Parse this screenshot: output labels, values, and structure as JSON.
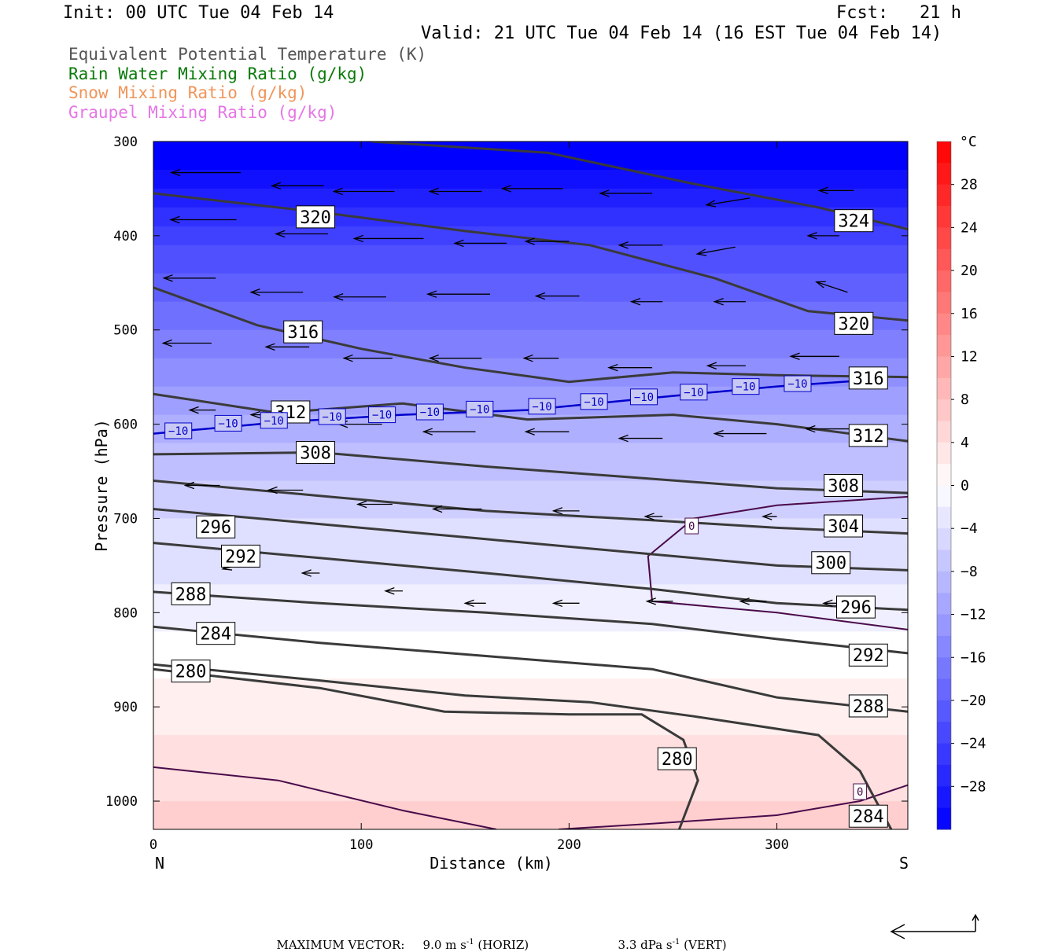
{
  "header": {
    "init": "Init: 00 UTC Tue 04 Feb 14",
    "fcst": "Fcst:   21 h",
    "valid": "Valid: 21 UTC Tue 04 Feb 14 (16 EST Tue 04 Feb 14)",
    "fields": [
      {
        "text": "Equivalent Potential Temperature (K)",
        "color": "#555555"
      },
      {
        "text": "Rain Water Mixing Ratio (g/kg)",
        "color": "#0a7a0a"
      },
      {
        "text": "Snow Mixing Ratio (g/kg)",
        "color": "#f0955a"
      },
      {
        "text": "Graupel Mixing Ratio (g/kg)",
        "color": "#e676e6"
      }
    ]
  },
  "footer": {
    "label": "MAXIMUM VECTOR:",
    "horiz_value": "9.0 m s",
    "horiz_exp": "-1",
    "horiz_unit": "(HORIZ)",
    "vert_value": "3.3 dPa s",
    "vert_exp": "-1",
    "vert_unit": "(VERT)"
  },
  "chart_data": {
    "type": "cross-section contour",
    "xlabel": "Distance (km)",
    "ylabel": "Pressure (hPa)",
    "xlim": [
      0,
      363
    ],
    "ylim": [
      1030,
      300
    ],
    "x_ticks": [
      0,
      100,
      200,
      300
    ],
    "y_ticks": [
      300,
      400,
      500,
      600,
      700,
      800,
      900,
      1000
    ],
    "endpoint_left": "N",
    "endpoint_right": "S",
    "colorbar": {
      "unit": "°C",
      "tick_values": [
        28,
        24,
        20,
        16,
        12,
        8,
        4,
        0,
        -4,
        -8,
        -12,
        -16,
        -20,
        -24,
        -28
      ],
      "tick_labels": [
        "28",
        "24",
        "20",
        "16",
        "12",
        "8",
        "4",
        "0",
        "−4",
        "−8",
        "−12",
        "−16",
        "−20",
        "−24",
        "−28"
      ],
      "min": -32,
      "max": 32,
      "step": 2,
      "negative_color": "#0000ff",
      "positive_color": "#ff0000"
    },
    "temperature_shading": [
      {
        "x": [
          0,
          363
        ],
        "p": 300,
        "t": -34
      },
      {
        "x": [
          0,
          363
        ],
        "p": 400,
        "t": -24
      },
      {
        "x": [
          0,
          363
        ],
        "p": 500,
        "t": -17
      },
      {
        "x": [
          0,
          363
        ],
        "p": 600,
        "t": -10
      },
      {
        "x": [
          0,
          363
        ],
        "p": 700,
        "t": -5
      },
      {
        "x": [
          0,
          363
        ],
        "p": 800,
        "t": -2
      },
      {
        "x": [
          0,
          363
        ],
        "p": 900,
        "t": 2
      },
      {
        "x": [
          0,
          363
        ],
        "p": 1000,
        "t": 5
      }
    ],
    "theta_e_contours": [
      {
        "level": 324,
        "label": "324",
        "points": [
          [
            105,
            300
          ],
          [
            190,
            312
          ],
          [
            260,
            345
          ],
          [
            320,
            370
          ],
          [
            363,
            393
          ]
        ]
      },
      {
        "level": 320,
        "label": "320",
        "points": [
          [
            0,
            355
          ],
          [
            80,
            375
          ],
          [
            150,
            395
          ],
          [
            210,
            410
          ],
          [
            270,
            445
          ],
          [
            315,
            480
          ],
          [
            363,
            490
          ]
        ]
      },
      {
        "level": 316,
        "label": "316",
        "points": [
          [
            0,
            455
          ],
          [
            50,
            495
          ],
          [
            100,
            520
          ],
          [
            150,
            540
          ],
          [
            200,
            555
          ],
          [
            250,
            545
          ],
          [
            300,
            548
          ],
          [
            363,
            550
          ]
        ]
      },
      {
        "level": 312,
        "label": "312",
        "points": [
          [
            0,
            568
          ],
          [
            60,
            588
          ],
          [
            120,
            578
          ],
          [
            180,
            595
          ],
          [
            250,
            590
          ],
          [
            300,
            600
          ],
          [
            363,
            618
          ]
        ]
      },
      {
        "level": 308,
        "label": "308",
        "points": [
          [
            0,
            632
          ],
          [
            80,
            630
          ],
          [
            160,
            645
          ],
          [
            240,
            658
          ],
          [
            300,
            668
          ],
          [
            363,
            673
          ]
        ]
      },
      {
        "level": 304,
        "label": "304",
        "points": [
          [
            0,
            660
          ],
          [
            80,
            676
          ],
          [
            160,
            692
          ],
          [
            240,
            702
          ],
          [
            300,
            710
          ],
          [
            363,
            716
          ]
        ]
      },
      {
        "level": 300,
        "label": "300",
        "points": [
          [
            0,
            690
          ],
          [
            80,
            706
          ],
          [
            160,
            722
          ],
          [
            240,
            738
          ],
          [
            300,
            750
          ],
          [
            363,
            755
          ]
        ]
      },
      {
        "level": 296,
        "label": "296",
        "points": [
          [
            0,
            726
          ],
          [
            80,
            742
          ],
          [
            160,
            758
          ],
          [
            240,
            775
          ],
          [
            300,
            790
          ],
          [
            363,
            797
          ]
        ]
      },
      {
        "level": 292,
        "label": "292",
        "points": [
          [
            0,
            778
          ],
          [
            80,
            790
          ],
          [
            160,
            800
          ],
          [
            240,
            812
          ],
          [
            300,
            828
          ],
          [
            363,
            843
          ]
        ]
      },
      {
        "level": 288,
        "label": "288",
        "points": [
          [
            0,
            815
          ],
          [
            80,
            832
          ],
          [
            160,
            846
          ],
          [
            240,
            860
          ],
          [
            300,
            890
          ],
          [
            363,
            905
          ]
        ]
      },
      {
        "level": 284,
        "label": "284",
        "points": [
          [
            0,
            855
          ],
          [
            80,
            872
          ],
          [
            150,
            888
          ],
          [
            210,
            895
          ],
          [
            260,
            910
          ],
          [
            320,
            930
          ],
          [
            340,
            968
          ],
          [
            355,
            1030
          ]
        ]
      },
      {
        "level": 280,
        "label": "280",
        "points": [
          [
            0,
            860
          ],
          [
            80,
            880
          ],
          [
            140,
            905
          ],
          [
            200,
            908
          ],
          [
            235,
            908
          ],
          [
            255,
            935
          ],
          [
            262,
            978
          ],
          [
            253,
            1030
          ]
        ]
      }
    ],
    "theta_e_labels": [
      {
        "label": "320",
        "x": 78,
        "p": 380
      },
      {
        "label": "324",
        "x": 337,
        "p": 384
      },
      {
        "label": "316",
        "x": 72,
        "p": 502
      },
      {
        "label": "320",
        "x": 337,
        "p": 493
      },
      {
        "label": "316",
        "x": 344,
        "p": 551
      },
      {
        "label": "312",
        "x": 66,
        "p": 587
      },
      {
        "label": "312",
        "x": 344,
        "p": 612
      },
      {
        "label": "308",
        "x": 78,
        "p": 630
      },
      {
        "label": "308",
        "x": 332,
        "p": 665
      },
      {
        "label": "296",
        "x": 30,
        "p": 709
      },
      {
        "label": "304",
        "x": 332,
        "p": 708
      },
      {
        "label": "292",
        "x": 42,
        "p": 740
      },
      {
        "label": "300",
        "x": 326,
        "p": 747
      },
      {
        "label": "288",
        "x": 18,
        "p": 780
      },
      {
        "label": "296",
        "x": 338,
        "p": 794
      },
      {
        "label": "284",
        "x": 30,
        "p": 822
      },
      {
        "label": "292",
        "x": 344,
        "p": 845
      },
      {
        "label": "280",
        "x": 18,
        "p": 862
      },
      {
        "label": "288",
        "x": 344,
        "p": 899
      },
      {
        "label": "280",
        "x": 252,
        "p": 955
      },
      {
        "label": "284",
        "x": 344,
        "p": 1016
      }
    ],
    "isotherm_minus10": {
      "level": -10,
      "color": "#0000cc",
      "points": [
        [
          0,
          610
        ],
        [
          60,
          598
        ],
        [
          120,
          590
        ],
        [
          180,
          585
        ],
        [
          250,
          570
        ],
        [
          300,
          560
        ],
        [
          345,
          553
        ]
      ],
      "labels": [
        {
          "label": "−10",
          "x": 12,
          "p": 607
        },
        {
          "label": "−10",
          "x": 36,
          "p": 599
        },
        {
          "label": "−10",
          "x": 58,
          "p": 596
        },
        {
          "label": "−10",
          "x": 86,
          "p": 592
        },
        {
          "label": "−10",
          "x": 110,
          "p": 590
        },
        {
          "label": "−10",
          "x": 133,
          "p": 587
        },
        {
          "label": "−10",
          "x": 157,
          "p": 584
        },
        {
          "label": "−10",
          "x": 187,
          "p": 581
        },
        {
          "label": "−10",
          "x": 212,
          "p": 576
        },
        {
          "label": "−10",
          "x": 236,
          "p": 571
        },
        {
          "label": "−10",
          "x": 260,
          "p": 566
        },
        {
          "label": "−10",
          "x": 285,
          "p": 560
        },
        {
          "label": "−10",
          "x": 310,
          "p": 557
        }
      ]
    },
    "isotherm_zero": {
      "level": 0,
      "color": "#4a0a4a",
      "segments": [
        [
          [
            363,
            677
          ],
          [
            300,
            686
          ],
          [
            260,
            700
          ],
          [
            238,
            740
          ],
          [
            240,
            788
          ],
          [
            300,
            800
          ],
          [
            363,
            818
          ]
        ],
        [
          [
            0,
            964
          ],
          [
            60,
            978
          ],
          [
            120,
            1010
          ],
          [
            165,
            1030
          ]
        ],
        [
          [
            195,
            1030
          ],
          [
            240,
            1024
          ],
          [
            300,
            1015
          ],
          [
            340,
            1000
          ],
          [
            363,
            983
          ]
        ]
      ],
      "labels": [
        {
          "label": "0",
          "x": 259,
          "p": 708
        },
        {
          "label": "0",
          "x": 340,
          "p": 990
        }
      ]
    },
    "wind_vectors": [
      {
        "x": 42,
        "p": 333,
        "u": -40,
        "w": 0
      },
      {
        "x": 82,
        "p": 347,
        "u": -30,
        "w": 0
      },
      {
        "x": 116,
        "p": 353,
        "u": -35,
        "w": 0
      },
      {
        "x": 158,
        "p": 353,
        "u": -30,
        "w": 0
      },
      {
        "x": 197,
        "p": 350,
        "u": -35,
        "w": 0
      },
      {
        "x": 240,
        "p": 355,
        "u": -30,
        "w": 0
      },
      {
        "x": 287,
        "p": 360,
        "u": -25,
        "w": 4
      },
      {
        "x": 337,
        "p": 352,
        "u": -20,
        "w": 0
      },
      {
        "x": 40,
        "p": 383,
        "u": -38,
        "w": 0
      },
      {
        "x": 84,
        "p": 398,
        "u": -30,
        "w": 0
      },
      {
        "x": 130,
        "p": 403,
        "u": -40,
        "w": 0
      },
      {
        "x": 170,
        "p": 408,
        "u": -30,
        "w": 0
      },
      {
        "x": 200,
        "p": 406,
        "u": -25,
        "w": 0
      },
      {
        "x": 245,
        "p": 410,
        "u": -25,
        "w": 0
      },
      {
        "x": 280,
        "p": 412,
        "u": -22,
        "w": 4
      },
      {
        "x": 330,
        "p": 400,
        "u": -18,
        "w": 0
      },
      {
        "x": 30,
        "p": 445,
        "u": -30,
        "w": 0
      },
      {
        "x": 72,
        "p": 460,
        "u": -30,
        "w": 0
      },
      {
        "x": 112,
        "p": 465,
        "u": -30,
        "w": 0
      },
      {
        "x": 162,
        "p": 462,
        "u": -36,
        "w": 0
      },
      {
        "x": 205,
        "p": 464,
        "u": -25,
        "w": 0
      },
      {
        "x": 245,
        "p": 470,
        "u": -18,
        "w": 0
      },
      {
        "x": 285,
        "p": 470,
        "u": -18,
        "w": 0
      },
      {
        "x": 334,
        "p": 460,
        "u": -18,
        "w": -6
      },
      {
        "x": 28,
        "p": 514,
        "u": -28,
        "w": 0
      },
      {
        "x": 75,
        "p": 518,
        "u": -25,
        "w": 0
      },
      {
        "x": 115,
        "p": 530,
        "u": -28,
        "w": 0
      },
      {
        "x": 158,
        "p": 530,
        "u": -30,
        "w": 0
      },
      {
        "x": 195,
        "p": 530,
        "u": -20,
        "w": 0
      },
      {
        "x": 240,
        "p": 540,
        "u": -25,
        "w": 0
      },
      {
        "x": 285,
        "p": 538,
        "u": -22,
        "w": 0
      },
      {
        "x": 330,
        "p": 528,
        "u": -28,
        "w": 0
      },
      {
        "x": 30,
        "p": 585,
        "u": -15,
        "w": 0
      },
      {
        "x": 72,
        "p": 590,
        "u": -30,
        "w": 0
      },
      {
        "x": 110,
        "p": 600,
        "u": -25,
        "w": 0
      },
      {
        "x": 155,
        "p": 608,
        "u": -30,
        "w": 0
      },
      {
        "x": 200,
        "p": 608,
        "u": -25,
        "w": 0
      },
      {
        "x": 245,
        "p": 615,
        "u": -25,
        "w": 0
      },
      {
        "x": 295,
        "p": 610,
        "u": -30,
        "w": 0
      },
      {
        "x": 335,
        "p": 605,
        "u": -25,
        "w": 0
      },
      {
        "x": 32,
        "p": 665,
        "u": -20,
        "w": 0
      },
      {
        "x": 72,
        "p": 670,
        "u": -20,
        "w": 0
      },
      {
        "x": 115,
        "p": 685,
        "u": -20,
        "w": 0
      },
      {
        "x": 158,
        "p": 690,
        "u": -28,
        "w": 0
      },
      {
        "x": 205,
        "p": 692,
        "u": -15,
        "w": 0
      },
      {
        "x": 245,
        "p": 698,
        "u": -10,
        "w": 0
      },
      {
        "x": 300,
        "p": 698,
        "u": -8,
        "w": 0
      },
      {
        "x": 40,
        "p": 750,
        "u": -8,
        "w": 2
      },
      {
        "x": 80,
        "p": 758,
        "u": -10,
        "w": 0
      },
      {
        "x": 120,
        "p": 777,
        "u": -10,
        "w": 0
      },
      {
        "x": 160,
        "p": 790,
        "u": -12,
        "w": 0
      },
      {
        "x": 205,
        "p": 790,
        "u": -15,
        "w": 0
      },
      {
        "x": 250,
        "p": 788,
        "u": -15,
        "w": 0
      },
      {
        "x": 295,
        "p": 788,
        "u": -15,
        "w": 0
      },
      {
        "x": 335,
        "p": 790,
        "u": -15,
        "w": 0
      }
    ],
    "nw_vector_arrow_glyph": "long-left-arrow",
    "annotation_arrow_glyph": "max-vector-arrow"
  }
}
